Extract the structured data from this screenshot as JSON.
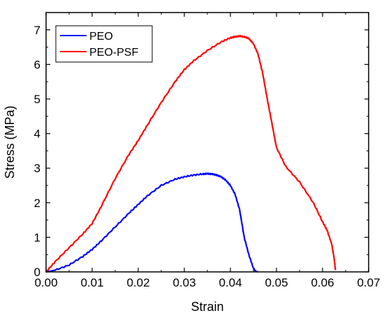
{
  "chart_data": {
    "type": "line",
    "xlabel": "Strain",
    "ylabel": "Stress (MPa)",
    "xlim": [
      0,
      0.07
    ],
    "ylim": [
      0,
      7.5
    ],
    "x_ticks": [
      "0.00",
      "0.01",
      "0.02",
      "0.03",
      "0.04",
      "0.05",
      "0.06",
      "0.07"
    ],
    "y_ticks": [
      "0",
      "1",
      "2",
      "3",
      "4",
      "5",
      "6",
      "7"
    ],
    "grid": false,
    "legend_position": "top-left",
    "series": [
      {
        "name": "PEO",
        "color": "#0000ff",
        "x": [
          0,
          0.002,
          0.005,
          0.008,
          0.01,
          0.012,
          0.015,
          0.018,
          0.02,
          0.022,
          0.025,
          0.028,
          0.03,
          0.032,
          0.034,
          0.035,
          0.036,
          0.037,
          0.038,
          0.039,
          0.04,
          0.041,
          0.042,
          0.043,
          0.044,
          0.045,
          0.0455,
          0.046
        ],
        "y": [
          0,
          0.05,
          0.2,
          0.45,
          0.65,
          0.9,
          1.3,
          1.7,
          1.95,
          2.2,
          2.5,
          2.68,
          2.75,
          2.8,
          2.83,
          2.84,
          2.83,
          2.8,
          2.75,
          2.65,
          2.5,
          2.25,
          1.8,
          1.0,
          0.5,
          0.1,
          0.02,
          0
        ]
      },
      {
        "name": "PEO-PSF",
        "color": "#ff0000",
        "x": [
          0,
          0.002,
          0.005,
          0.008,
          0.01,
          0.012,
          0.015,
          0.018,
          0.02,
          0.022,
          0.025,
          0.028,
          0.03,
          0.032,
          0.035,
          0.038,
          0.04,
          0.041,
          0.042,
          0.043,
          0.044,
          0.045,
          0.046,
          0.047,
          0.048,
          0.049,
          0.05,
          0.052,
          0.055,
          0.058,
          0.06,
          0.061,
          0.062,
          0.0625,
          0.0628
        ],
        "y": [
          0,
          0.3,
          0.7,
          1.1,
          1.4,
          1.9,
          2.7,
          3.4,
          3.8,
          4.25,
          4.9,
          5.5,
          5.85,
          6.1,
          6.4,
          6.65,
          6.77,
          6.8,
          6.82,
          6.8,
          6.75,
          6.6,
          6.3,
          5.75,
          5.0,
          4.3,
          3.6,
          3.05,
          2.6,
          2.0,
          1.45,
          1.2,
          0.8,
          0.4,
          0.05
        ]
      }
    ]
  }
}
